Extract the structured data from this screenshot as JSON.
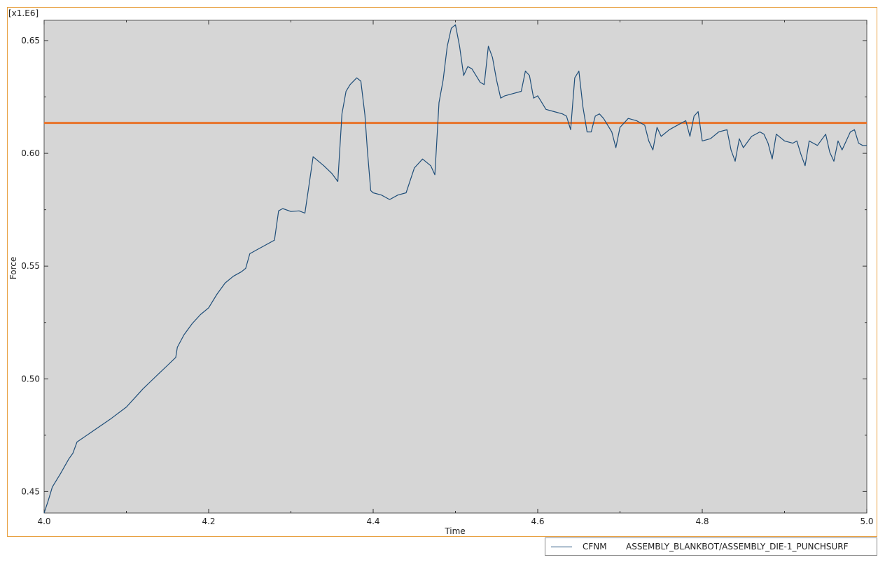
{
  "chart_data": {
    "type": "line",
    "multiplier_label": "[x1.E6]",
    "xlabel": "Time",
    "ylabel": "Force",
    "xlim": [
      4.0,
      5.0
    ],
    "ylim": [
      0.4405,
      0.659
    ],
    "x_ticks": [
      4.0,
      4.2,
      4.4,
      4.6,
      4.8,
      5.0
    ],
    "x_tick_labels": [
      "4.0",
      "4.2",
      "4.4",
      "4.6",
      "4.8",
      "5.0"
    ],
    "y_ticks": [
      0.45,
      0.5,
      0.55,
      0.6,
      0.65
    ],
    "y_tick_labels": [
      "0.45",
      "0.50",
      "0.55",
      "0.60",
      "0.65"
    ],
    "y_minor_step": 0.025,
    "x_minor_step": 0.1,
    "plot_background": "#d6d6d6",
    "reference_line": {
      "y": 0.6135,
      "color": "#e8732a"
    },
    "series": [
      {
        "name": "CFNM",
        "description": "ASSEMBLY_BLANKBOT/ASSEMBLY_DIE-1_PUNCHSURF",
        "color": "#1f4e79",
        "points": [
          [
            4.0,
            0.4405
          ],
          [
            4.005,
            0.446
          ],
          [
            4.01,
            0.452
          ],
          [
            4.02,
            0.458
          ],
          [
            4.03,
            0.4645
          ],
          [
            4.035,
            0.467
          ],
          [
            4.04,
            0.472
          ],
          [
            4.06,
            0.477
          ],
          [
            4.08,
            0.482
          ],
          [
            4.1,
            0.4875
          ],
          [
            4.11,
            0.4915
          ],
          [
            4.12,
            0.4955
          ],
          [
            4.13,
            0.499
          ],
          [
            4.14,
            0.5025
          ],
          [
            4.15,
            0.506
          ],
          [
            4.16,
            0.5095
          ],
          [
            4.162,
            0.514
          ],
          [
            4.17,
            0.5195
          ],
          [
            4.18,
            0.5245
          ],
          [
            4.19,
            0.5285
          ],
          [
            4.2,
            0.5315
          ],
          [
            4.21,
            0.5375
          ],
          [
            4.22,
            0.5425
          ],
          [
            4.23,
            0.5455
          ],
          [
            4.24,
            0.5475
          ],
          [
            4.245,
            0.549
          ],
          [
            4.25,
            0.5555
          ],
          [
            4.26,
            0.5575
          ],
          [
            4.27,
            0.5595
          ],
          [
            4.28,
            0.5615
          ],
          [
            4.285,
            0.5745
          ],
          [
            4.29,
            0.5755
          ],
          [
            4.3,
            0.5742
          ],
          [
            4.31,
            0.5745
          ],
          [
            4.317,
            0.5735
          ],
          [
            4.322,
            0.586
          ],
          [
            4.327,
            0.5985
          ],
          [
            4.34,
            0.5945
          ],
          [
            4.35,
            0.591
          ],
          [
            4.357,
            0.5875
          ],
          [
            4.362,
            0.6175
          ],
          [
            4.367,
            0.6275
          ],
          [
            4.372,
            0.6305
          ],
          [
            4.38,
            0.6335
          ],
          [
            4.385,
            0.632
          ],
          [
            4.39,
            0.617
          ],
          [
            4.393,
            0.601
          ],
          [
            4.397,
            0.5835
          ],
          [
            4.4,
            0.5825
          ],
          [
            4.41,
            0.5815
          ],
          [
            4.415,
            0.5805
          ],
          [
            4.42,
            0.5795
          ],
          [
            4.43,
            0.5815
          ],
          [
            4.44,
            0.5825
          ],
          [
            4.45,
            0.5935
          ],
          [
            4.46,
            0.5975
          ],
          [
            4.47,
            0.5945
          ],
          [
            4.475,
            0.5905
          ],
          [
            4.48,
            0.6225
          ],
          [
            4.485,
            0.6325
          ],
          [
            4.49,
            0.6475
          ],
          [
            4.495,
            0.6555
          ],
          [
            4.5,
            0.657
          ],
          [
            4.505,
            0.6475
          ],
          [
            4.51,
            0.6345
          ],
          [
            4.515,
            0.6385
          ],
          [
            4.52,
            0.6375
          ],
          [
            4.525,
            0.6345
          ],
          [
            4.53,
            0.6315
          ],
          [
            4.535,
            0.6305
          ],
          [
            4.54,
            0.6475
          ],
          [
            4.545,
            0.6425
          ],
          [
            4.55,
            0.6325
          ],
          [
            4.555,
            0.6245
          ],
          [
            4.56,
            0.6255
          ],
          [
            4.57,
            0.6265
          ],
          [
            4.58,
            0.6275
          ],
          [
            4.585,
            0.6365
          ],
          [
            4.59,
            0.6345
          ],
          [
            4.595,
            0.6245
          ],
          [
            4.6,
            0.6255
          ],
          [
            4.61,
            0.6195
          ],
          [
            4.62,
            0.6185
          ],
          [
            4.63,
            0.6175
          ],
          [
            4.635,
            0.6165
          ],
          [
            4.64,
            0.6105
          ],
          [
            4.645,
            0.6335
          ],
          [
            4.65,
            0.6365
          ],
          [
            4.655,
            0.6205
          ],
          [
            4.66,
            0.6095
          ],
          [
            4.665,
            0.6095
          ],
          [
            4.67,
            0.6165
          ],
          [
            4.675,
            0.6175
          ],
          [
            4.68,
            0.6155
          ],
          [
            4.69,
            0.6095
          ],
          [
            4.695,
            0.6025
          ],
          [
            4.7,
            0.6115
          ],
          [
            4.71,
            0.6155
          ],
          [
            4.72,
            0.6145
          ],
          [
            4.73,
            0.6125
          ],
          [
            4.735,
            0.6055
          ],
          [
            4.74,
            0.6015
          ],
          [
            4.745,
            0.6115
          ],
          [
            4.75,
            0.6075
          ],
          [
            4.76,
            0.6105
          ],
          [
            4.77,
            0.6125
          ],
          [
            4.78,
            0.6145
          ],
          [
            4.785,
            0.6075
          ],
          [
            4.79,
            0.6165
          ],
          [
            4.795,
            0.6185
          ],
          [
            4.8,
            0.6055
          ],
          [
            4.81,
            0.6065
          ],
          [
            4.82,
            0.6095
          ],
          [
            4.83,
            0.6105
          ],
          [
            4.835,
            0.6015
          ],
          [
            4.84,
            0.5965
          ],
          [
            4.845,
            0.6065
          ],
          [
            4.85,
            0.6025
          ],
          [
            4.86,
            0.6075
          ],
          [
            4.87,
            0.6095
          ],
          [
            4.875,
            0.6085
          ],
          [
            4.88,
            0.6045
          ],
          [
            4.885,
            0.5975
          ],
          [
            4.89,
            0.6085
          ],
          [
            4.9,
            0.6055
          ],
          [
            4.91,
            0.6045
          ],
          [
            4.915,
            0.6055
          ],
          [
            4.92,
            0.5995
          ],
          [
            4.925,
            0.5945
          ],
          [
            4.93,
            0.6055
          ],
          [
            4.94,
            0.6035
          ],
          [
            4.95,
            0.6085
          ],
          [
            4.955,
            0.6005
          ],
          [
            4.96,
            0.5965
          ],
          [
            4.965,
            0.6055
          ],
          [
            4.97,
            0.6015
          ],
          [
            4.975,
            0.6055
          ],
          [
            4.98,
            0.6095
          ],
          [
            4.985,
            0.6105
          ],
          [
            4.99,
            0.6045
          ],
          [
            4.995,
            0.6035
          ],
          [
            5.0,
            0.6035
          ]
        ]
      }
    ]
  }
}
